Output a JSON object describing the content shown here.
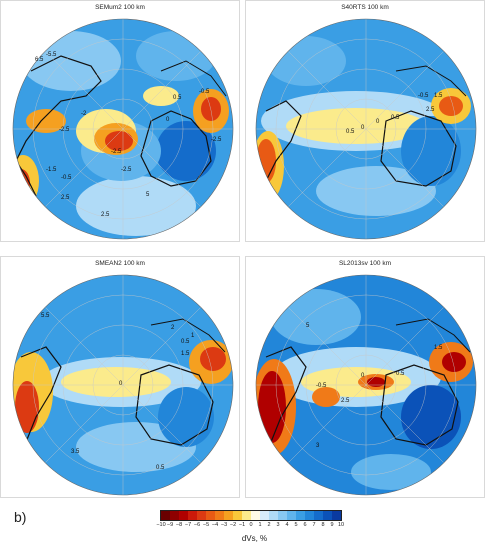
{
  "figure": {
    "panel_label": "b)",
    "panels": [
      {
        "id": "p0",
        "title": "SEMum2 100 km"
      },
      {
        "id": "p1",
        "title": "S40RTS 100 km"
      },
      {
        "id": "p2",
        "title": "SMEAN2 100 km"
      },
      {
        "id": "p3",
        "title": "SL2013sv 100 km"
      }
    ]
  },
  "colorbar": {
    "title": "dVs, %",
    "ticks": [
      "−10",
      "−9",
      "−8",
      "−7",
      "−6",
      "−5",
      "−4",
      "−3",
      "−2",
      "−1",
      "0",
      "1",
      "2",
      "3",
      "4",
      "5",
      "6",
      "7",
      "8",
      "9",
      "10"
    ],
    "colors": [
      "#6a0000",
      "#8e0000",
      "#b00000",
      "#cc1a0a",
      "#dc3a12",
      "#e85a14",
      "#f07a18",
      "#f5a020",
      "#f8c83a",
      "#fbeb8c",
      "#fffbe6",
      "#d8ecfb",
      "#b0dbf7",
      "#88c8f2",
      "#60b4ec",
      "#3a9ee4",
      "#2286d9",
      "#146ccb",
      "#0b52b8",
      "#0a3aa0"
    ]
  },
  "maps": [
    {
      "panel": "p0",
      "contours": [
        "-2.5",
        "-2.5",
        "-0.5",
        "-1.5",
        "0.5",
        "-2",
        "0",
        "2.5",
        "-2.5",
        "-5.5",
        "-0.5",
        "2.5",
        "5",
        "6.5",
        "-2.5"
      ],
      "anomaly_colors": {
        "background": "#3a9ee4",
        "hot": "#dc3a12",
        "warm": "#f5a020",
        "pale": "#fbeb8c",
        "deep": "#146ccb"
      }
    },
    {
      "panel": "p1",
      "contours": [
        "-0.5",
        "0",
        "0.5",
        "1.5",
        "2.5",
        "0.5",
        "0"
      ],
      "anomaly_colors": {
        "background": "#3a9ee4",
        "hot": "#e85a14",
        "warm": "#f8c83a",
        "pale": "#fbeb8c",
        "deep": "#2286d9"
      }
    },
    {
      "panel": "p2",
      "contours": [
        "0.5",
        "1",
        "1.5",
        "2",
        "0",
        "5.5",
        "3.5",
        "0.5"
      ],
      "anomaly_colors": {
        "background": "#3a9ee4",
        "hot": "#dc3a12",
        "warm": "#f5a020",
        "pale": "#fbeb8c",
        "deep": "#2286d9"
      }
    },
    {
      "panel": "p3",
      "contours": [
        "0",
        "2.5",
        "0.5",
        "-0.5",
        "3",
        "5",
        "1.5"
      ],
      "anomaly_colors": {
        "background": "#3a9ee4",
        "hot": "#b00000",
        "warm": "#f07a18",
        "pale": "#fbeb8c",
        "deep": "#0b52b8"
      }
    }
  ]
}
